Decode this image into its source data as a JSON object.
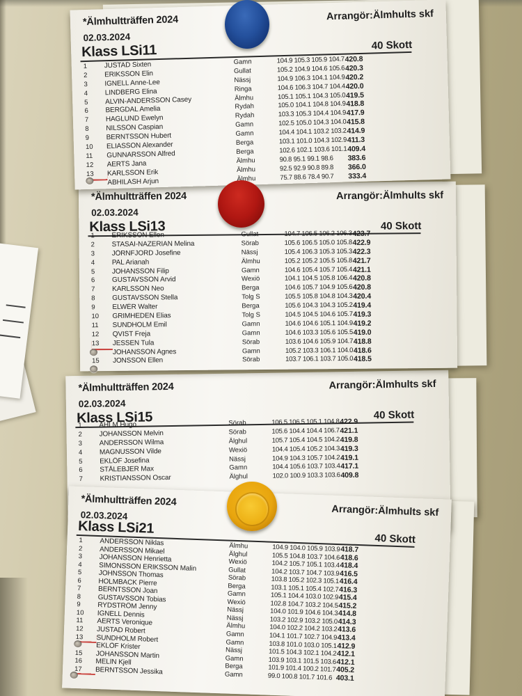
{
  "scene": {
    "wall_color_left": "#d6cfae",
    "wall_color_right": "#a89e78",
    "paper_color": "#f6f5f0",
    "magnet_colors": {
      "blue": "#1c4489",
      "red": "#b01712",
      "yellow": "#e8a50e"
    },
    "left_scrap_note": "1"
  },
  "sheets": [
    {
      "title": "*Älmhultträffen 2024",
      "date": "02.03.2024",
      "organizer": "Arrangör:Älmhults skf",
      "klass": "Klass LSi11",
      "shots": "40 Skott",
      "magnet": "blue",
      "rows": [
        {
          "rank": "1",
          "name": "JUSTAD Sixten",
          "club": "Gamn",
          "scores": "104.9 105.3 105.9 104.7",
          "total": "420.8"
        },
        {
          "rank": "2",
          "name": "ERIKSSON Elin",
          "club": "Gullat",
          "scores": "105.2 104.9 104.6 105.6",
          "total": "420.3"
        },
        {
          "rank": "3",
          "name": "IGNELL Anne-Lee",
          "club": "Nässj",
          "scores": "104.9 106.3 104.1 104.9",
          "total": "420.2"
        },
        {
          "rank": "4",
          "name": "LINDBERG Elina",
          "club": "Ringa",
          "scores": "104.6 106.3 104.7 104.4",
          "total": "420.0"
        },
        {
          "rank": "5",
          "name": "ALVIN-ANDERSSON Casey",
          "club": "Älmhu",
          "scores": "105.1 105.1 104.3 105.0",
          "total": "419.5"
        },
        {
          "rank": "6",
          "name": "BERGDAL Amelia",
          "club": "Rydah",
          "scores": "105.0 104.1 104.8 104.9",
          "total": "418.8"
        },
        {
          "rank": "7",
          "name": "HAGLUND Ewelyn",
          "club": "Rydah",
          "scores": "103.3 105.3 104.4 104.9",
          "total": "417.9"
        },
        {
          "rank": "8",
          "name": "NILSSON Caspian",
          "club": "Gamn",
          "scores": "102.5 105.0 104.3 104.0",
          "total": "415.8"
        },
        {
          "rank": "9",
          "name": "BERNTSSON Hubert",
          "club": "Gamn",
          "scores": "104.4 104.1 103.2 103.2",
          "total": "414.9"
        },
        {
          "rank": "10",
          "name": "ELIASSON Alexander",
          "club": "Berga",
          "scores": "103.1 101.0 104.3 102.9",
          "total": "411.3"
        },
        {
          "rank": "11",
          "name": "GUNNARSSON Alfred",
          "club": "Berga",
          "scores": "102.6 102.1 103.6 101.1",
          "total": "409.4"
        },
        {
          "rank": "12",
          "name": "AERTS Jana",
          "club": "Älmhu",
          "scores": "90.8 95.1 99.1 98.6",
          "total": "383.6"
        },
        {
          "rank": "13",
          "name": "KARLSSON Erik",
          "club": "Älmhu",
          "scores": "92.5 92.9 90.8 89.8",
          "total": "366.0",
          "marked": true
        },
        {
          "rank": "",
          "name": "ABHILASH Arjun",
          "club": "Älmhu",
          "scores": "75.7 88.6 78.4 90.7",
          "total": "333.4",
          "hole": true
        }
      ]
    },
    {
      "title": "*Älmhultträffen 2024",
      "date": "02.03.2024",
      "organizer": "Arrangör:Älmhults skf",
      "klass": "Klass LSi13",
      "shots": "40 Skott",
      "magnet": "red",
      "rows": [
        {
          "rank": "1",
          "name": "ERIKSSON Ellen",
          "club": "Gullat",
          "scores": "104.7 106.5 106.2 106.3",
          "total": "423.7"
        },
        {
          "rank": "2",
          "name": "STASAI-NAZERIAN Melina",
          "club": "Sörab",
          "scores": "105.6 106.5 105.0 105.8",
          "total": "422.9"
        },
        {
          "rank": "3",
          "name": "JÖRNFJORD Josefine",
          "club": "Nässj",
          "scores": "105.4 106.3 105.3 105.3",
          "total": "422.3"
        },
        {
          "rank": "4",
          "name": "PAL Arianah",
          "club": "Älmhu",
          "scores": "105.2 105.2 105.5 105.8",
          "total": "421.7"
        },
        {
          "rank": "5",
          "name": "JOHANSSON Filip",
          "club": "Gamn",
          "scores": "104.6 105.4 105.7 105.4",
          "total": "421.1"
        },
        {
          "rank": "6",
          "name": "GUSTAVSSON Arvid",
          "club": "Wexiö",
          "scores": "104.1 104.5 105.8 106.4",
          "total": "420.8"
        },
        {
          "rank": "7",
          "name": "KARLSSON Neo",
          "club": "Berga",
          "scores": "104.6 105.7 104.9 105.6",
          "total": "420.8"
        },
        {
          "rank": "8",
          "name": "GUSTAVSSON Stella",
          "club": "Tolg S",
          "scores": "105.5 105.8 104.8 104.3",
          "total": "420.4"
        },
        {
          "rank": "9",
          "name": "ELWÉR Walter",
          "club": "Berga",
          "scores": "105.6 104.3 104.3 105.2",
          "total": "419.4"
        },
        {
          "rank": "10",
          "name": "GRIMHEDEN Elias",
          "club": "Tolg S",
          "scores": "104.5 104.5 104.6 105.7",
          "total": "419.3"
        },
        {
          "rank": "11",
          "name": "SUNDHOLM Emil",
          "club": "Gamn",
          "scores": "104.6 104.6 105.1 104.9",
          "total": "419.2"
        },
        {
          "rank": "12",
          "name": "QVIST Freja",
          "club": "Gamn",
          "scores": "104.6 103.3 105.6 105.5",
          "total": "419.0"
        },
        {
          "rank": "13",
          "name": "JESSEN Tula",
          "club": "Sörab",
          "scores": "103.6 104.6 105.9 104.7",
          "total": "418.8",
          "marked": true
        },
        {
          "rank": "",
          "name": "JOHANSSON Agnes",
          "club": "Gamn",
          "scores": "105.2 103.3 106.1 104.0",
          "total": "418.6",
          "hole": true
        },
        {
          "rank": "15",
          "name": "JONSSON Ellen",
          "club": "Sörab",
          "scores": "103.7 106.1 103.7 105.0",
          "total": "418.5"
        }
      ]
    },
    {
      "title": "*Älmhultträffen 2024",
      "date": "02.03.2024",
      "organizer": "Arrangör:Älmhults skf",
      "klass": "Klass LSi15",
      "shots": "40 Skott",
      "magnet": null,
      "rows": [
        {
          "rank": "1",
          "name": "AHLM Hugo",
          "club": "Sörab",
          "scores": "106.5 106.5 105.1 104.8",
          "total": "422.9"
        },
        {
          "rank": "2",
          "name": "JOHANSSON Melvin",
          "club": "Sörab",
          "scores": "105.6 104.4 104.4 106.7",
          "total": "421.1"
        },
        {
          "rank": "3",
          "name": "ANDERSSON Wilma",
          "club": "Älghul",
          "scores": "105.7 105.4 104.5 104.2",
          "total": "419.8"
        },
        {
          "rank": "4",
          "name": "MAGNUSSON Vilde",
          "club": "Wexiö",
          "scores": "104.4 105.4 105.2 104.3",
          "total": "419.3"
        },
        {
          "rank": "5",
          "name": "EKLÖF Josefina",
          "club": "Nässj",
          "scores": "104.9 104.3 105.7 104.2",
          "total": "419.1"
        },
        {
          "rank": "6",
          "name": "STÅLEBJER Max",
          "club": "Gamn",
          "scores": "104.4 105.6 103.7 103.4",
          "total": "417.1"
        },
        {
          "rank": "7",
          "name": "KRISTIANSSON Oscar",
          "club": "Älghul",
          "scores": "102.0 100.9 103.3 103.6",
          "total": "409.8"
        }
      ]
    },
    {
      "title": "*Älmhultträffen 2024",
      "date": "02.03.2024",
      "organizer": "Arrangör:Älmhults skf",
      "klass": "Klass LSi21",
      "shots": "40 Skott",
      "magnet": "yellow",
      "rows": [
        {
          "rank": "1",
          "name": "ANDERSSON Niklas",
          "club": "Älmhu",
          "scores": "104.9 104.0 105.9 103.9",
          "total": "418.7"
        },
        {
          "rank": "2",
          "name": "ANDERSSON Mikael",
          "club": "Älghul",
          "scores": "105.5 104.8 103.7 104.6",
          "total": "418.6"
        },
        {
          "rank": "3",
          "name": "JOHANSSON Henrietta",
          "club": "Wexiö",
          "scores": "104.2 105.7 105.1 103.4",
          "total": "418.4"
        },
        {
          "rank": "4",
          "name": "SIMONSSON ERIKSSON Malin",
          "club": "Gullat",
          "scores": "104.2 103.7 104.7 103.9",
          "total": "416.5"
        },
        {
          "rank": "5",
          "name": "JOHNSSON Thomas",
          "club": "Sörab",
          "scores": "103.8 105.2 102.3 105.1",
          "total": "416.4"
        },
        {
          "rank": "6",
          "name": "HOLMBACK Pierre",
          "club": "Berga",
          "scores": "103.1 105.1 105.4 102.7",
          "total": "416.3"
        },
        {
          "rank": "7",
          "name": "BERNTSSON Joan",
          "club": "Gamn",
          "scores": "105.1 104.4 103.0 102.9",
          "total": "415.4"
        },
        {
          "rank": "8",
          "name": "GUSTAVSSON Tobias",
          "club": "Wexiö",
          "scores": "102.8 104.7 103.2 104.5",
          "total": "415.2"
        },
        {
          "rank": "9",
          "name": "RYDSTRÖM Jenny",
          "club": "Nässj",
          "scores": "104.0 101.9 104.6 104.3",
          "total": "414.8"
        },
        {
          "rank": "10",
          "name": "IGNELL Dennis",
          "club": "Nässj",
          "scores": "103.2 102.9 103.2 105.0",
          "total": "414.3"
        },
        {
          "rank": "11",
          "name": "AERTS Veronique",
          "club": "Älmhu",
          "scores": "104.0 102.2 104.2 103.2",
          "total": "413.6"
        },
        {
          "rank": "12",
          "name": "JUSTAD Robert",
          "club": "Gamn",
          "scores": "104.1 101.7 102.7 104.9",
          "total": "413.4"
        },
        {
          "rank": "13",
          "name": "SUNDHOLM Robert",
          "club": "Gamn",
          "scores": "103.8 101.0 103.0 105.1",
          "total": "412.9",
          "marked": true
        },
        {
          "rank": "",
          "name": "EKLÖF Krister",
          "club": "Nässj",
          "scores": "101.5 104.3 102.1 104.2",
          "total": "412.1",
          "hole": true
        },
        {
          "rank": "15",
          "name": "JOHANSSON Martin",
          "club": "Gamn",
          "scores": "103.9 103.1 101.5 103.6",
          "total": "412.1"
        },
        {
          "rank": "16",
          "name": "MELIN Kjell",
          "club": "Berga",
          "scores": "101.9 101.4 100.2 101.7",
          "total": "405.2"
        },
        {
          "rank": "17",
          "name": "BERNTSSON Jessika",
          "club": "Gamn",
          "scores": "99.0 100.8 101.7 101.6",
          "total": "403.1",
          "marked": true
        }
      ]
    }
  ]
}
